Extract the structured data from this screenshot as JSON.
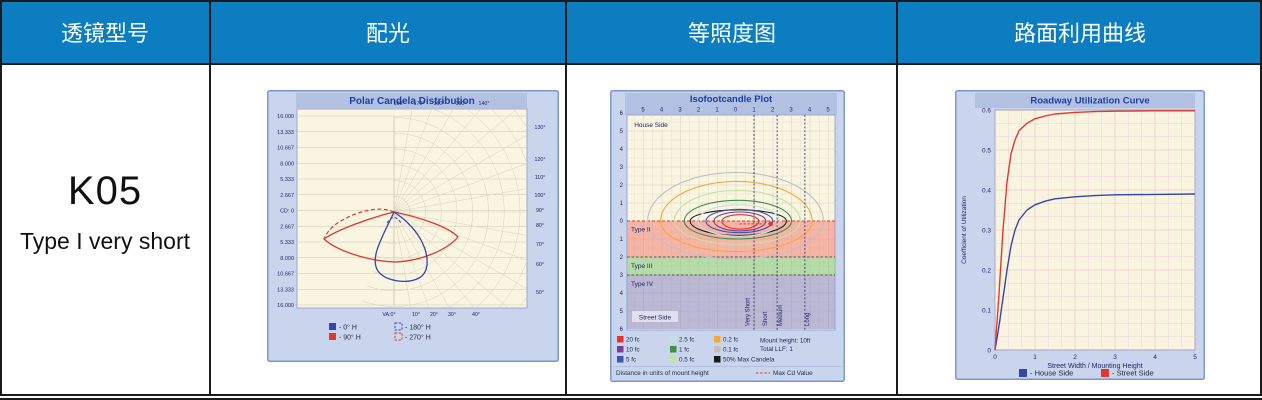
{
  "page": {
    "bg": "#ffffff",
    "border_color": "#1a1a1a"
  },
  "header": {
    "bg": "#0d7dc2",
    "text_color": "#ffffff",
    "columns": [
      "透镜型号",
      "配光",
      "等照度图",
      "路面利用曲线"
    ]
  },
  "lens": {
    "model": "K05",
    "type": "Type I very short"
  },
  "chart_data": [
    {
      "id": "polar",
      "type": "line",
      "title": "Polar Candela Distribution",
      "cd_axis": [
        "16.000",
        "13.333",
        "10.667",
        "8.000",
        "5.333",
        "2.667",
        "CD: 0",
        "2.667",
        "5.333",
        "8.000",
        "10.667",
        "13.333",
        "16.000"
      ],
      "top_angles": [
        "180°",
        "170°",
        "160°",
        "150°",
        "140°"
      ],
      "right_angles": [
        "130°",
        "120°",
        "110°",
        "100°",
        "90°",
        "80°",
        "70°",
        "60°",
        "50°"
      ],
      "bottom_angles": [
        "VA:0°",
        "10°",
        "20°",
        "30°",
        "40°"
      ],
      "legend": [
        {
          "label": "- 0° H",
          "color": "#3347a8",
          "style": "solid"
        },
        {
          "label": "- 90° H",
          "color": "#dd3a2e",
          "style": "solid"
        },
        {
          "label": "- 180° H",
          "color": "#3347a8",
          "style": "dashed"
        },
        {
          "label": "- 270° H",
          "color": "#dd3a2e",
          "style": "dashed"
        }
      ],
      "series_note": "0° H plane: narrow lobe near nadir; 90° H plane: wide lobe spanning roughly VA 50°–90° both sides; 270° H mirror shown dashed"
    },
    {
      "id": "isofootcandle",
      "type": "contour",
      "title": "Isofootcandle Plot",
      "x_ticks": [
        "5",
        "4",
        "3",
        "2",
        "1",
        "0",
        "1",
        "2",
        "3",
        "4",
        "5"
      ],
      "y_ticks": [
        "6",
        "5",
        "4",
        "3",
        "2",
        "1",
        "0",
        "1",
        "2",
        "3",
        "4",
        "5",
        "6"
      ],
      "house_label": "House Side",
      "street_label": "Street Side",
      "zones": [
        {
          "label": "Type II",
          "from": 0,
          "to": 2
        },
        {
          "label": "Type III",
          "from": 2,
          "to": 3
        },
        {
          "label": "Type IV",
          "from": 3,
          "to": 6
        }
      ],
      "throw_boundaries": [
        1,
        2.25,
        3.75
      ],
      "throw_labels": [
        "Very Short",
        "Short",
        "Medium",
        "Long"
      ],
      "contours": [
        {
          "level": "0.1 fc",
          "color": "#c0c0c0",
          "half_width": 4.75,
          "house": 2.7,
          "street": 2.1
        },
        {
          "level": "0.2 fc",
          "color": "#f2a93b",
          "half_width": 4.1,
          "house": 2.2,
          "street": 1.7
        },
        {
          "level": "0.5 fc",
          "color": "#c2e4a2",
          "half_width": 3.4,
          "house": 1.7,
          "street": 1.3
        },
        {
          "level": "1 fc",
          "color": "#3f9148",
          "half_width": 2.9,
          "house": 1.15,
          "street": 1.0
        },
        {
          "level": "50% Max Candela",
          "color": "#1a1a1a",
          "half_width": 2.6,
          "house": 0.62,
          "street": 0.8
        },
        {
          "level": "2.5 fc",
          "color": "#bfe3e4",
          "half_width": 2.2,
          "house": 0.9,
          "street": 0.85
        },
        {
          "level": "5 fc",
          "color": "#3c55b4",
          "half_width": 1.8,
          "house": 0.65,
          "street": 0.65
        },
        {
          "level": "10 fc",
          "color": "#7a3e8f",
          "half_width": 1.4,
          "house": 0.5,
          "street": 0.55
        },
        {
          "level": "20 fc",
          "color": "#e5342b",
          "half_width": 1.0,
          "house": 0.35,
          "street": 0.45
        }
      ],
      "legend": [
        {
          "label": "20 fc",
          "color": "#e5342b"
        },
        {
          "label": "10 fc",
          "color": "#7a3e8f"
        },
        {
          "label": "5 fc",
          "color": "#3c55b4"
        },
        {
          "label": "2.5 fc",
          "color": "#bfe3e4"
        },
        {
          "label": "1 fc",
          "color": "#3f9148"
        },
        {
          "label": "0.5 fc",
          "color": "#c2e4a2"
        },
        {
          "label": "0.2 fc",
          "color": "#f2a93b"
        },
        {
          "label": "0.1 fc",
          "color": "#c0c0c0"
        },
        {
          "label": "50% Max Candela",
          "color": "#1a1a1a"
        }
      ],
      "notes": [
        "Mount height: 10ft",
        "Total LLF: 1"
      ],
      "footer": "Distance in units of mount height",
      "max_cd": {
        "label": "Max Cd Value",
        "x": 1.9,
        "street": 0.16
      }
    },
    {
      "id": "roadway",
      "type": "line",
      "title": "Roadway Utilization Curve",
      "xlabel": "Street Width / Mounting Height",
      "ylabel": "Coefficient of Utilization",
      "x_ticks": [
        "0",
        "1",
        "2",
        "3",
        "4",
        "5"
      ],
      "y_ticks": [
        "0.6",
        "0.5",
        "0.4",
        "0.3",
        "0.2",
        "0.1",
        "0"
      ],
      "xlim": [
        0,
        5
      ],
      "ylim": [
        0,
        0.6
      ],
      "x": [
        0,
        0.1,
        0.2,
        0.3,
        0.4,
        0.5,
        0.6,
        0.8,
        1,
        1.25,
        1.5,
        2,
        2.5,
        3,
        4,
        5
      ],
      "series": [
        {
          "name": "- House Side",
          "color": "#3347a8",
          "values": [
            0,
            0.06,
            0.13,
            0.2,
            0.26,
            0.3,
            0.325,
            0.35,
            0.363,
            0.372,
            0.378,
            0.383,
            0.386,
            0.388,
            0.389,
            0.39
          ]
        },
        {
          "name": "- Street Side",
          "color": "#dd3a2e",
          "values": [
            0,
            0.14,
            0.3,
            0.42,
            0.49,
            0.525,
            0.548,
            0.567,
            0.578,
            0.585,
            0.59,
            0.594,
            0.596,
            0.597,
            0.598,
            0.598
          ]
        }
      ]
    }
  ]
}
